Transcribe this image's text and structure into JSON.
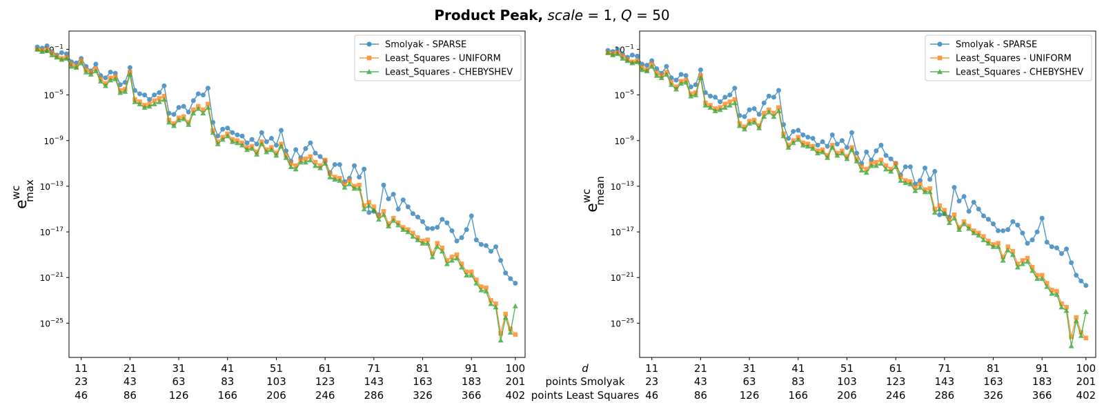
{
  "figure": {
    "title_bold": "Product Peak,",
    "title_scale": "scale",
    "title_scale_val": " = 1, ",
    "title_q": "Q",
    "title_q_val": " = 50"
  },
  "x_row_labels": {
    "d": "d",
    "smolyak": "points Smolyak",
    "ls": "points Least Squares"
  },
  "colors": {
    "smolyak": "#1f77b4",
    "uniform": "#ff7f0e",
    "chebyshev": "#2ca02c"
  },
  "chart_data": [
    {
      "type": "line",
      "ylabel_main": "e",
      "ylabel_sup": "wc",
      "ylabel_sub": "max",
      "yscale": "log",
      "ylim_exp": [
        -28,
        0.6
      ],
      "xlim": [
        8.5,
        102
      ],
      "yticks": [
        {
          "exp": -1,
          "base": "10",
          "sup": "−1"
        },
        {
          "exp": -5,
          "base": "10",
          "sup": "−5"
        },
        {
          "exp": -9,
          "base": "10",
          "sup": "−9"
        },
        {
          "exp": -13,
          "base": "10",
          "sup": "−13"
        },
        {
          "exp": -17,
          "base": "10",
          "sup": "−17"
        },
        {
          "exp": -21,
          "base": "10",
          "sup": "−21"
        },
        {
          "exp": -25,
          "base": "10",
          "sup": "−25"
        }
      ],
      "xticks": [
        {
          "d": 11,
          "d_label": "11",
          "smolyak": "23",
          "ls": "46"
        },
        {
          "d": 21,
          "d_label": "21",
          "smolyak": "43",
          "ls": "86"
        },
        {
          "d": 31,
          "d_label": "31",
          "smolyak": "63",
          "ls": "126"
        },
        {
          "d": 41,
          "d_label": "41",
          "smolyak": "83",
          "ls": "166"
        },
        {
          "d": 51,
          "d_label": "51",
          "smolyak": "103",
          "ls": "206"
        },
        {
          "d": 61,
          "d_label": "61",
          "smolyak": "123",
          "ls": "246"
        },
        {
          "d": 71,
          "d_label": "71",
          "smolyak": "143",
          "ls": "286"
        },
        {
          "d": 81,
          "d_label": "81",
          "smolyak": "163",
          "ls": "326"
        },
        {
          "d": 91,
          "d_label": "91",
          "smolyak": "183",
          "ls": "366"
        },
        {
          "d": 100,
          "d_label": "100",
          "smolyak": "201",
          "ls": "402"
        }
      ],
      "legend": [
        "Smolyak - SPARSE",
        "Least_Squares - UNIFORM",
        "Least_Squares - CHEBYSHEV"
      ],
      "series_log10": {
        "smolyak": [
          -0.8,
          -0.9,
          -0.7,
          -1.2,
          -1.5,
          -1.3,
          -1.4,
          -2.1,
          -2.2,
          -1.8,
          -2.5,
          -2.9,
          -2.3,
          -3.3,
          -3.5,
          -3.0,
          -3.1,
          -4.1,
          -3.9,
          -2.6,
          -4.6,
          -4.9,
          -5.0,
          -5.4,
          -5.0,
          -4.8,
          -4.2,
          -6.6,
          -6.7,
          -6.1,
          -6.0,
          -6.5,
          -5.5,
          -4.9,
          -5.0,
          -4.4,
          -7.4,
          -8.6,
          -8.0,
          -7.9,
          -8.3,
          -8.5,
          -8.6,
          -9.2,
          -8.9,
          -9.3,
          -8.3,
          -9.1,
          -8.8,
          -9.4,
          -8.1,
          -9.9,
          -10.8,
          -9.8,
          -10.5,
          -9.7,
          -9.2,
          -10.1,
          -10.4,
          -10.8,
          -11.8,
          -11.1,
          -11.1,
          -12.6,
          -12.3,
          -11.2,
          -12.2,
          -11.5,
          -15.3,
          -15.2,
          -15.5,
          -12.9,
          -14.1,
          -13.7,
          -15.0,
          -14.2,
          -14.8,
          -15.4,
          -15.7,
          -16.1,
          -16.7,
          -16.7,
          -16.6,
          -15.9,
          -16.2,
          -16.9,
          -17.8,
          -17.5,
          -16.8,
          -15.6,
          -17.7,
          -18.1,
          -18.2,
          -18.7,
          -18.3,
          -19.5,
          -20.6,
          -21.1,
          -21.5
        ],
        "uniform": [
          -1.0,
          -1.1,
          -1.0,
          -1.3,
          -1.6,
          -1.8,
          -1.7,
          -2.3,
          -2.5,
          -2.0,
          -2.8,
          -3.0,
          -2.7,
          -3.6,
          -4.0,
          -3.5,
          -3.4,
          -4.6,
          -4.5,
          -3.0,
          -5.4,
          -5.6,
          -5.9,
          -5.8,
          -5.5,
          -5.3,
          -5.1,
          -7.2,
          -7.5,
          -7.0,
          -6.9,
          -7.4,
          -6.3,
          -6.0,
          -6.3,
          -5.8,
          -8.1,
          -9.1,
          -8.7,
          -8.4,
          -8.9,
          -9.0,
          -9.2,
          -9.6,
          -9.5,
          -10.0,
          -9.1,
          -9.8,
          -9.6,
          -10.1,
          -9.3,
          -10.3,
          -11.0,
          -11.2,
          -10.7,
          -10.6,
          -10.4,
          -10.9,
          -11.2,
          -10.7,
          -11.9,
          -12.2,
          -12.3,
          -12.8,
          -12.5,
          -13.0,
          -12.9,
          -14.7,
          -14.4,
          -14.8,
          -15.6,
          -15.2,
          -16.3,
          -15.8,
          -16.2,
          -16.6,
          -16.8,
          -17.1,
          -17.5,
          -17.8,
          -17.7,
          -18.9,
          -18.0,
          -18.4,
          -19.5,
          -19.2,
          -19.0,
          -19.8,
          -20.5,
          -20.5,
          -21.2,
          -21.8,
          -21.9,
          -23.0,
          -23.3,
          -25.9,
          -24.2,
          -25.5,
          -26.0
        ],
        "chebyshev": [
          -1.0,
          -1.2,
          -1.1,
          -1.5,
          -1.7,
          -1.9,
          -1.8,
          -2.5,
          -2.6,
          -2.2,
          -3.0,
          -3.2,
          -2.9,
          -3.8,
          -4.2,
          -3.7,
          -3.6,
          -4.8,
          -4.7,
          -3.2,
          -5.6,
          -5.8,
          -6.1,
          -6.0,
          -5.8,
          -5.6,
          -5.4,
          -7.4,
          -7.7,
          -7.2,
          -7.1,
          -7.6,
          -6.6,
          -6.2,
          -6.6,
          -6.1,
          -8.3,
          -9.3,
          -8.9,
          -8.6,
          -9.1,
          -9.2,
          -9.4,
          -9.8,
          -9.7,
          -10.2,
          -9.3,
          -10.0,
          -9.8,
          -10.3,
          -9.5,
          -10.5,
          -11.3,
          -11.5,
          -10.9,
          -10.9,
          -10.7,
          -11.2,
          -11.4,
          -11.0,
          -12.2,
          -12.4,
          -12.5,
          -13.1,
          -12.8,
          -13.2,
          -13.2,
          -15.0,
          -14.7,
          -15.1,
          -15.9,
          -15.5,
          -16.5,
          -16.0,
          -16.4,
          -16.8,
          -17.0,
          -17.4,
          -17.7,
          -18.0,
          -18.0,
          -19.2,
          -18.3,
          -18.7,
          -19.8,
          -19.5,
          -19.3,
          -20.1,
          -20.8,
          -20.8,
          -21.5,
          -22.1,
          -22.2,
          -23.3,
          -23.6,
          -26.5,
          -24.5,
          -25.8,
          -23.5
        ]
      }
    },
    {
      "type": "line",
      "ylabel_main": "e",
      "ylabel_sup": "wc",
      "ylabel_sub": "mean",
      "yscale": "log",
      "ylim_exp": [
        -28,
        0.6
      ],
      "xlim": [
        8.5,
        102
      ],
      "yticks": [
        {
          "exp": -1,
          "base": "10",
          "sup": "−1"
        },
        {
          "exp": -5,
          "base": "10",
          "sup": "−5"
        },
        {
          "exp": -9,
          "base": "10",
          "sup": "−9"
        },
        {
          "exp": -13,
          "base": "10",
          "sup": "−13"
        },
        {
          "exp": -17,
          "base": "10",
          "sup": "−17"
        },
        {
          "exp": -21,
          "base": "10",
          "sup": "−21"
        },
        {
          "exp": -25,
          "base": "10",
          "sup": "−25"
        }
      ],
      "xticks": [
        {
          "d": 11,
          "d_label": "11",
          "smolyak": "23",
          "ls": "46"
        },
        {
          "d": 21,
          "d_label": "21",
          "smolyak": "43",
          "ls": "86"
        },
        {
          "d": 31,
          "d_label": "31",
          "smolyak": "63",
          "ls": "126"
        },
        {
          "d": 41,
          "d_label": "41",
          "smolyak": "83",
          "ls": "166"
        },
        {
          "d": 51,
          "d_label": "51",
          "smolyak": "103",
          "ls": "206"
        },
        {
          "d": 61,
          "d_label": "61",
          "smolyak": "123",
          "ls": "246"
        },
        {
          "d": 71,
          "d_label": "71",
          "smolyak": "143",
          "ls": "286"
        },
        {
          "d": 81,
          "d_label": "81",
          "smolyak": "163",
          "ls": "326"
        },
        {
          "d": 91,
          "d_label": "91",
          "smolyak": "183",
          "ls": "366"
        },
        {
          "d": 100,
          "d_label": "100",
          "smolyak": "201",
          "ls": "402"
        }
      ],
      "legend": [
        "Smolyak - SPARSE",
        "Least_Squares - UNIFORM",
        "Least_Squares - CHEBYSHEV"
      ],
      "series_log10": {
        "smolyak": [
          -1.1,
          -1.2,
          -1.0,
          -1.4,
          -1.7,
          -1.5,
          -1.6,
          -2.3,
          -2.4,
          -2.0,
          -2.7,
          -3.1,
          -2.5,
          -3.5,
          -3.7,
          -3.2,
          -3.3,
          -4.3,
          -4.1,
          -2.8,
          -4.8,
          -5.1,
          -5.2,
          -5.6,
          -5.2,
          -5.0,
          -4.4,
          -6.8,
          -6.9,
          -6.3,
          -6.2,
          -6.7,
          -5.7,
          -5.1,
          -5.2,
          -4.6,
          -7.6,
          -8.8,
          -8.2,
          -8.1,
          -8.5,
          -8.7,
          -8.8,
          -9.4,
          -9.1,
          -9.5,
          -8.5,
          -9.3,
          -9.0,
          -9.6,
          -8.3,
          -10.1,
          -11.0,
          -10.0,
          -10.7,
          -9.9,
          -9.4,
          -10.3,
          -10.6,
          -11.0,
          -12.0,
          -11.3,
          -11.3,
          -12.8,
          -12.5,
          -11.4,
          -12.4,
          -11.7,
          -15.5,
          -15.4,
          -15.7,
          -13.1,
          -14.3,
          -13.9,
          -15.2,
          -14.4,
          -15.0,
          -15.6,
          -15.9,
          -16.3,
          -16.9,
          -16.9,
          -16.8,
          -16.1,
          -16.4,
          -17.1,
          -18.0,
          -17.7,
          -17.0,
          -15.8,
          -17.9,
          -18.3,
          -18.4,
          -18.9,
          -18.5,
          -19.7,
          -20.8,
          -21.3,
          -21.7
        ],
        "uniform": [
          -1.3,
          -1.4,
          -1.3,
          -1.6,
          -1.9,
          -2.1,
          -2.0,
          -2.6,
          -2.8,
          -2.3,
          -3.1,
          -3.3,
          -3.0,
          -3.9,
          -4.3,
          -3.8,
          -3.7,
          -4.9,
          -4.8,
          -3.3,
          -5.7,
          -5.9,
          -6.2,
          -6.1,
          -5.8,
          -5.6,
          -5.4,
          -7.5,
          -7.8,
          -7.3,
          -7.2,
          -7.7,
          -6.6,
          -6.3,
          -6.6,
          -6.1,
          -8.4,
          -9.4,
          -9.0,
          -8.7,
          -9.2,
          -9.3,
          -9.5,
          -9.9,
          -9.8,
          -10.3,
          -9.4,
          -10.1,
          -9.9,
          -10.4,
          -9.6,
          -10.6,
          -11.3,
          -11.5,
          -11.0,
          -10.9,
          -10.7,
          -11.2,
          -11.5,
          -11.0,
          -12.2,
          -12.5,
          -12.6,
          -13.1,
          -12.8,
          -13.3,
          -13.2,
          -15.0,
          -14.7,
          -15.1,
          -15.9,
          -15.5,
          -16.6,
          -16.1,
          -16.5,
          -16.9,
          -17.1,
          -17.4,
          -17.8,
          -18.1,
          -18.0,
          -19.2,
          -18.3,
          -18.7,
          -19.8,
          -19.5,
          -19.3,
          -20.1,
          -20.8,
          -20.8,
          -21.5,
          -22.1,
          -22.2,
          -23.3,
          -23.6,
          -26.2,
          -24.5,
          -25.8,
          -26.3
        ],
        "chebyshev": [
          -1.3,
          -1.5,
          -1.4,
          -1.8,
          -2.0,
          -2.2,
          -2.1,
          -2.8,
          -2.9,
          -2.5,
          -3.3,
          -3.5,
          -3.2,
          -4.1,
          -4.5,
          -4.0,
          -3.9,
          -5.1,
          -5.0,
          -3.5,
          -5.9,
          -6.1,
          -6.4,
          -6.3,
          -6.1,
          -5.9,
          -5.7,
          -7.7,
          -8.0,
          -7.5,
          -7.4,
          -7.9,
          -6.9,
          -6.5,
          -6.9,
          -6.4,
          -8.6,
          -9.6,
          -9.2,
          -8.9,
          -9.4,
          -9.5,
          -9.7,
          -10.1,
          -10.0,
          -10.5,
          -9.6,
          -10.3,
          -10.1,
          -10.6,
          -9.8,
          -10.8,
          -11.6,
          -11.8,
          -11.2,
          -11.2,
          -11.0,
          -11.5,
          -11.7,
          -11.3,
          -12.5,
          -12.7,
          -12.8,
          -13.4,
          -13.1,
          -13.5,
          -13.5,
          -15.3,
          -15.0,
          -15.4,
          -16.2,
          -15.8,
          -16.8,
          -16.3,
          -16.7,
          -17.1,
          -17.3,
          -17.7,
          -18.0,
          -18.3,
          -18.3,
          -19.5,
          -18.6,
          -19.0,
          -20.1,
          -19.8,
          -19.6,
          -20.4,
          -21.1,
          -21.1,
          -21.8,
          -22.4,
          -22.5,
          -23.6,
          -23.9,
          -27.0,
          -24.8,
          -26.1,
          -24.0
        ]
      }
    }
  ]
}
